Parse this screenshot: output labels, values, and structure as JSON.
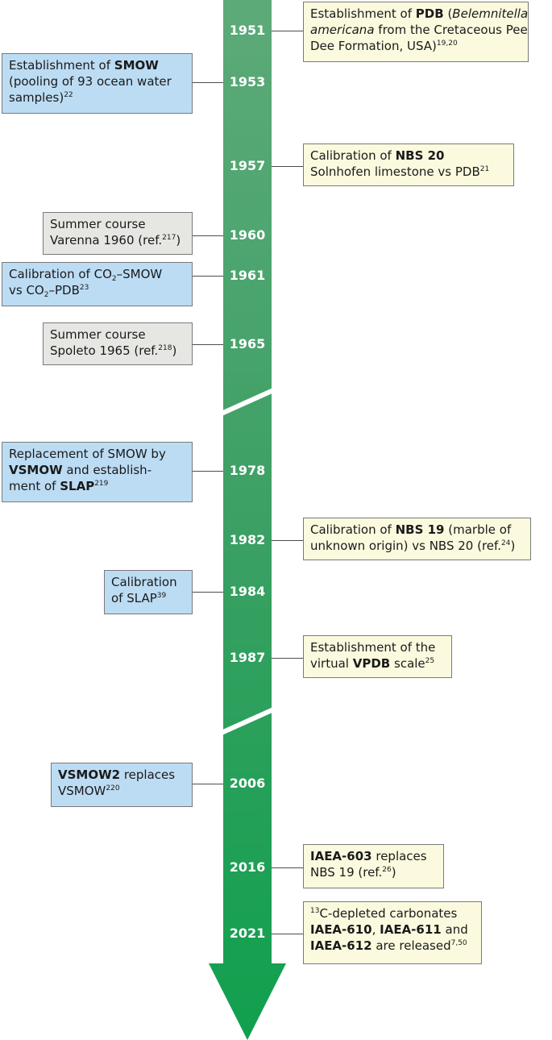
{
  "timeline": {
    "events": [
      {
        "id": "e1951",
        "year": "1951",
        "color": "yellow",
        "side": "right",
        "lines": [
          [
            {
              "t": "Establishment of "
            },
            {
              "t": "PDB",
              "b": true
            },
            {
              "t": " ("
            },
            {
              "t": "Belemnitella",
              "i": true
            }
          ],
          [
            {
              "t": "americana",
              "i": true
            },
            {
              "t": " from the Cretaceous Pee"
            }
          ],
          [
            {
              "t": "Dee Formation, USA)"
            },
            {
              "t": "19,20",
              "sup": true
            }
          ]
        ]
      },
      {
        "id": "e1953",
        "year": "1953",
        "color": "blue",
        "side": "left",
        "lines": [
          [
            {
              "t": "Establishment of "
            },
            {
              "t": "SMOW",
              "b": true
            }
          ],
          [
            {
              "t": "(pooling of 93 ocean water"
            }
          ],
          [
            {
              "t": "samples)"
            },
            {
              "t": "22",
              "sup": true
            }
          ]
        ]
      },
      {
        "id": "e1957",
        "year": "1957",
        "color": "yellow",
        "side": "right",
        "lines": [
          [
            {
              "t": "Calibration of "
            },
            {
              "t": "NBS 20",
              "b": true
            }
          ],
          [
            {
              "t": "Solnhofen limestone vs PDB"
            },
            {
              "t": "21",
              "sup": true
            }
          ]
        ]
      },
      {
        "id": "e1960",
        "year": "1960",
        "color": "grey",
        "side": "left",
        "lines": [
          [
            {
              "t": "Summer course"
            }
          ],
          [
            {
              "t": "Varenna 1960 (ref."
            },
            {
              "t": "217",
              "sup": true
            },
            {
              "t": ")"
            }
          ]
        ]
      },
      {
        "id": "e1961",
        "year": "1961",
        "color": "blue",
        "side": "left",
        "lines": [
          [
            {
              "t": "Calibration of CO"
            },
            {
              "t": "2",
              "sub": true
            },
            {
              "t": "–SMOW"
            }
          ],
          [
            {
              "t": "vs CO"
            },
            {
              "t": "2",
              "sub": true
            },
            {
              "t": "–PDB"
            },
            {
              "t": "23",
              "sup": true
            }
          ]
        ]
      },
      {
        "id": "e1965",
        "year": "1965",
        "color": "grey",
        "side": "left",
        "lines": [
          [
            {
              "t": "Summer course"
            }
          ],
          [
            {
              "t": "Spoleto 1965 (ref."
            },
            {
              "t": "218",
              "sup": true
            },
            {
              "t": ")"
            }
          ]
        ]
      },
      {
        "id": "e1978",
        "year": "1978",
        "color": "blue",
        "side": "left",
        "lines": [
          [
            {
              "t": "Replacement of SMOW by"
            }
          ],
          [
            {
              "t": "VSMOW",
              "b": true
            },
            {
              "t": " and establish-"
            }
          ],
          [
            {
              "t": "ment of "
            },
            {
              "t": "SLAP",
              "b": true
            },
            {
              "t": "219",
              "sup": true
            }
          ]
        ]
      },
      {
        "id": "e1982",
        "year": "1982",
        "color": "yellow",
        "side": "right",
        "lines": [
          [
            {
              "t": "Calibration of "
            },
            {
              "t": "NBS 19",
              "b": true
            },
            {
              "t": " (marble of"
            }
          ],
          [
            {
              "t": "unknown origin) vs NBS 20 (ref."
            },
            {
              "t": "24",
              "sup": true
            },
            {
              "t": ")"
            }
          ]
        ]
      },
      {
        "id": "e1984",
        "year": "1984",
        "color": "blue",
        "side": "left",
        "lines": [
          [
            {
              "t": "Calibration"
            }
          ],
          [
            {
              "t": "of SLAP"
            },
            {
              "t": "39",
              "sup": true
            }
          ]
        ]
      },
      {
        "id": "e1987",
        "year": "1987",
        "color": "yellow",
        "side": "right",
        "lines": [
          [
            {
              "t": "Establishment of the"
            }
          ],
          [
            {
              "t": "virtual "
            },
            {
              "t": "VPDB",
              "b": true
            },
            {
              "t": " scale"
            },
            {
              "t": "25",
              "sup": true
            }
          ]
        ]
      },
      {
        "id": "e2006",
        "year": "2006",
        "color": "blue",
        "side": "left",
        "lines": [
          [
            {
              "t": "VSMOW2",
              "b": true
            },
            {
              "t": " replaces"
            }
          ],
          [
            {
              "t": "VSMOW"
            },
            {
              "t": "220",
              "sup": true
            }
          ]
        ]
      },
      {
        "id": "e2016",
        "year": "2016",
        "color": "yellow",
        "side": "right",
        "lines": [
          [
            {
              "t": "IAEA-603",
              "b": true
            },
            {
              "t": " replaces"
            }
          ],
          [
            {
              "t": "NBS 19 (ref."
            },
            {
              "t": "26",
              "sup": true
            },
            {
              "t": ")"
            }
          ]
        ]
      },
      {
        "id": "e2021",
        "year": "2021",
        "color": "yellow",
        "side": "right",
        "lines": [
          [
            {
              "t": "13",
              "sup": true
            },
            {
              "t": "C-depleted carbonates"
            }
          ],
          [
            {
              "t": "IAEA-610",
              "b": true
            },
            {
              "t": ", "
            },
            {
              "t": "IAEA-611",
              "b": true
            },
            {
              "t": " and"
            }
          ],
          [
            {
              "t": "IAEA-612",
              "b": true
            },
            {
              "t": " are released"
            },
            {
              "t": "7,50",
              "sup": true
            }
          ]
        ]
      }
    ]
  }
}
